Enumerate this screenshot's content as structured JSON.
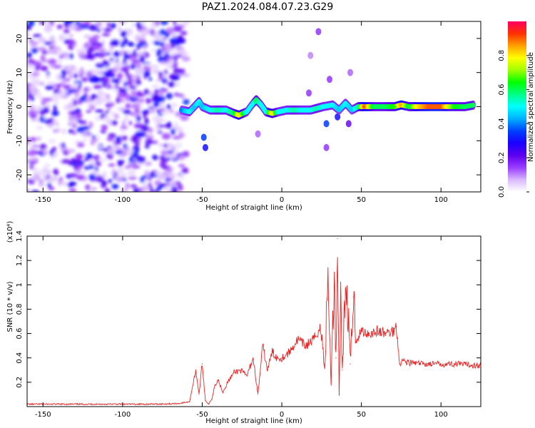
{
  "figure": {
    "title": "PAZ1.2024.084.07.23.G29"
  },
  "chart_data": [
    {
      "type": "heatmap",
      "xlabel": "Height of straight line (km)",
      "ylabel": "Frequency (Hz)",
      "xlim": [
        -160,
        125
      ],
      "ylim": [
        -25,
        25
      ],
      "x_ticks": [
        -150,
        -100,
        -50,
        0,
        50,
        100
      ],
      "y_ticks": [
        -20,
        -10,
        0,
        10,
        20
      ],
      "colorbar": {
        "label": "Normalized spectral amplitude",
        "range": [
          0,
          1
        ],
        "ticks": [
          0.0,
          0.2,
          0.4,
          0.6,
          0.8
        ],
        "colors": [
          "#ffffff",
          "#d9b8ff",
          "#9a3cff",
          "#5c00f0",
          "#1a00ff",
          "#0040ff",
          "#00b0ff",
          "#00ffff",
          "#00ff88",
          "#00ff00",
          "#a0ff00",
          "#ffff00",
          "#ffa000",
          "#ff3000",
          "#ff0060"
        ]
      },
      "noise_region": {
        "x_range": [
          -160,
          -60
        ],
        "f_range": [
          -25,
          25
        ],
        "amplitude_range": [
          0.03,
          0.35
        ]
      },
      "ridge": [
        {
          "x": -63,
          "f": -1,
          "a": 0.4
        },
        {
          "x": -58,
          "f": -1.5,
          "a": 0.5
        },
        {
          "x": -55,
          "f": 0,
          "a": 0.45
        },
        {
          "x": -52,
          "f": 1.5,
          "a": 0.5
        },
        {
          "x": -50,
          "f": 0,
          "a": 0.45
        },
        {
          "x": -45,
          "f": -1,
          "a": 0.5
        },
        {
          "x": -40,
          "f": -1,
          "a": 0.55
        },
        {
          "x": -35,
          "f": -1,
          "a": 0.5
        },
        {
          "x": -30,
          "f": -2,
          "a": 0.6
        },
        {
          "x": -27,
          "f": -2.5,
          "a": 0.8
        },
        {
          "x": -22,
          "f": -1.5,
          "a": 0.5
        },
        {
          "x": -18,
          "f": 1,
          "a": 0.5
        },
        {
          "x": -16,
          "f": 2,
          "a": 0.6
        },
        {
          "x": -13,
          "f": 0.5,
          "a": 0.5
        },
        {
          "x": -10,
          "f": -1.5,
          "a": 0.5
        },
        {
          "x": -6,
          "f": -2,
          "a": 0.8
        },
        {
          "x": -2,
          "f": -1.5,
          "a": 0.5
        },
        {
          "x": 3,
          "f": -1,
          "a": 0.5
        },
        {
          "x": 8,
          "f": -1,
          "a": 0.55
        },
        {
          "x": 13,
          "f": -1,
          "a": 0.5
        },
        {
          "x": 18,
          "f": -1,
          "a": 0.5
        },
        {
          "x": 22,
          "f": -0.5,
          "a": 0.55
        },
        {
          "x": 26,
          "f": 0,
          "a": 0.5
        },
        {
          "x": 32,
          "f": 0.5,
          "a": 0.5
        },
        {
          "x": 36,
          "f": -1,
          "a": 0.45
        },
        {
          "x": 40,
          "f": 1,
          "a": 0.5
        },
        {
          "x": 44,
          "f": -1,
          "a": 0.45
        },
        {
          "x": 48,
          "f": 0,
          "a": 0.55
        },
        {
          "x": 52,
          "f": 0,
          "a": 0.9
        },
        {
          "x": 58,
          "f": 0,
          "a": 0.6
        },
        {
          "x": 65,
          "f": 0,
          "a": 0.6
        },
        {
          "x": 71,
          "f": 0,
          "a": 0.65
        },
        {
          "x": 75,
          "f": 0.5,
          "a": 0.85
        },
        {
          "x": 80,
          "f": 0,
          "a": 0.6
        },
        {
          "x": 85,
          "f": 0,
          "a": 0.8
        },
        {
          "x": 92,
          "f": 0,
          "a": 0.9
        },
        {
          "x": 100,
          "f": 0,
          "a": 0.9
        },
        {
          "x": 108,
          "f": 0,
          "a": 0.65
        },
        {
          "x": 115,
          "f": 0,
          "a": 0.6
        },
        {
          "x": 121,
          "f": 0.5,
          "a": 0.6
        }
      ],
      "scattered_blobs": [
        {
          "x": -49,
          "f": -9,
          "a": 0.35
        },
        {
          "x": -48,
          "f": -12,
          "a": 0.3
        },
        {
          "x": 23,
          "f": 22,
          "a": 0.15
        },
        {
          "x": 17,
          "f": 4,
          "a": 0.15
        },
        {
          "x": 28,
          "f": -5,
          "a": 0.35
        },
        {
          "x": 28,
          "f": -12,
          "a": 0.15
        },
        {
          "x": 30,
          "f": 8,
          "a": 0.15
        },
        {
          "x": 42,
          "f": -5,
          "a": 0.2
        },
        {
          "x": 43,
          "f": 10,
          "a": 0.12
        },
        {
          "x": 18,
          "f": 15,
          "a": 0.1
        },
        {
          "x": -15,
          "f": -8,
          "a": 0.12
        },
        {
          "x": 35,
          "f": -3,
          "a": 0.3
        }
      ]
    },
    {
      "type": "line",
      "xlabel": "Height of straight line (km)",
      "ylabel": "SNR (10 * v/v)",
      "y_multiplier": "(x10⁴)",
      "xlim": [
        -160,
        125
      ],
      "ylim": [
        0,
        1.4
      ],
      "x_ticks": [
        -150,
        -100,
        -50,
        0,
        50,
        100
      ],
      "y_ticks": [
        0.2,
        0.4,
        0.6,
        0.8,
        1.0,
        1.2,
        1.4
      ],
      "series_color": "#ee2222",
      "series": [
        {
          "x": [
            -160,
            -140,
            -120,
            -100,
            -80,
            -65,
            -58,
            -54,
            -52,
            -50,
            -48,
            -46,
            -44,
            -42,
            -40,
            -37,
            -34,
            -30,
            -26,
            -22,
            -18,
            -15,
            -12,
            -9,
            -6,
            -3,
            0,
            5,
            10,
            15,
            20,
            24,
            27,
            29,
            31,
            33,
            34,
            35,
            36,
            37,
            38,
            39,
            41,
            43,
            45,
            47,
            50,
            55,
            60,
            65,
            70,
            72,
            74,
            76,
            80,
            90,
            100,
            110,
            120,
            125
          ],
          "values": [
            0.02,
            0.02,
            0.02,
            0.02,
            0.02,
            0.025,
            0.04,
            0.3,
            0.1,
            0.35,
            0.05,
            0.02,
            0.06,
            0.18,
            0.22,
            0.12,
            0.2,
            0.28,
            0.3,
            0.25,
            0.4,
            0.1,
            0.5,
            0.3,
            0.45,
            0.4,
            0.4,
            0.45,
            0.55,
            0.5,
            0.55,
            0.65,
            0.35,
            1.05,
            0.2,
            1.1,
            0.4,
            1.38,
            0.1,
            0.9,
            0.3,
            0.7,
            0.95,
            0.35,
            0.9,
            0.55,
            0.62,
            0.6,
            0.62,
            0.6,
            0.62,
            0.66,
            0.35,
            0.38,
            0.36,
            0.35,
            0.35,
            0.35,
            0.34,
            0.34
          ]
        }
      ]
    }
  ]
}
